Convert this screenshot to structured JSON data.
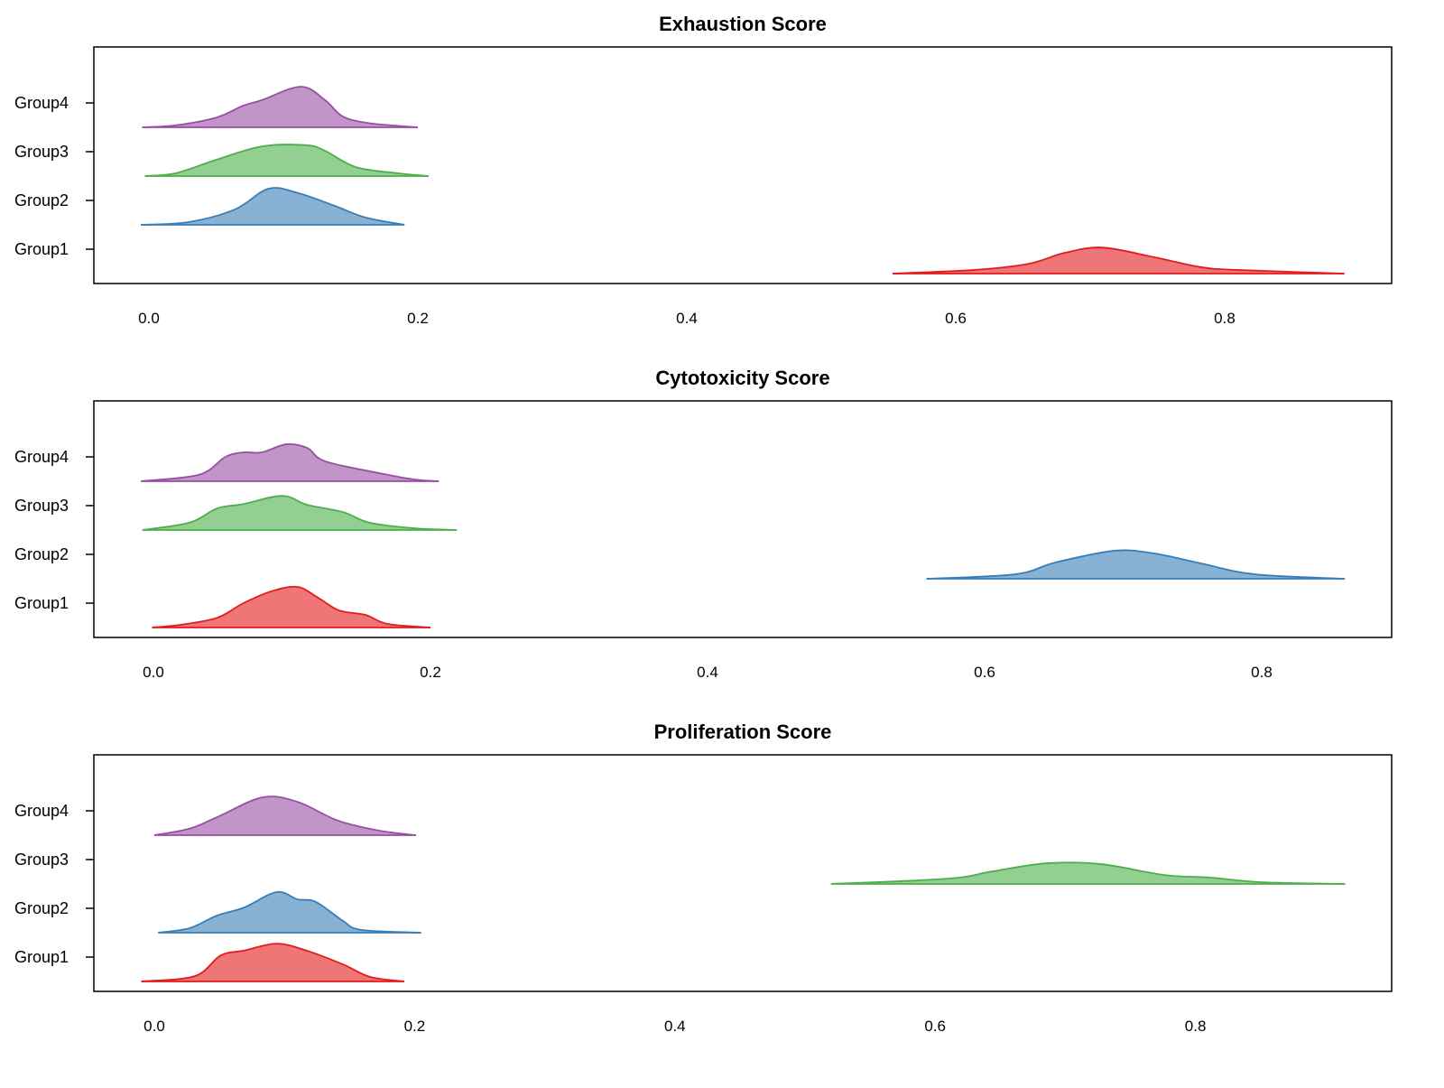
{
  "chart_data": [
    {
      "type": "ridgeline",
      "title": "Exhaustion Score",
      "x_ticks": [
        "0.0",
        "0.2",
        "0.4",
        "0.6",
        "0.8"
      ],
      "x_tick_values": [
        0,
        0.2,
        0.4,
        0.6,
        0.8
      ],
      "groups": [
        {
          "name": "Group1",
          "color": "#E41A1C",
          "points": [
            [
              0.553,
              0
            ],
            [
              0.614,
              0.09
            ],
            [
              0.654,
              0.24
            ],
            [
              0.681,
              0.51
            ],
            [
              0.709,
              0.64
            ],
            [
              0.748,
              0.4
            ],
            [
              0.782,
              0.16
            ],
            [
              0.809,
              0.09
            ],
            [
              0.889,
              0
            ]
          ]
        },
        {
          "name": "Group2",
          "color": "#377EB8",
          "points": [
            [
              -0.006,
              0
            ],
            [
              0.03,
              0.07
            ],
            [
              0.064,
              0.38
            ],
            [
              0.089,
              0.89
            ],
            [
              0.111,
              0.78
            ],
            [
              0.138,
              0.47
            ],
            [
              0.161,
              0.18
            ],
            [
              0.19,
              0
            ]
          ]
        },
        {
          "name": "Group3",
          "color": "#4DAF4A",
          "points": [
            [
              -0.003,
              0
            ],
            [
              0.02,
              0.07
            ],
            [
              0.05,
              0.4
            ],
            [
              0.084,
              0.73
            ],
            [
              0.117,
              0.76
            ],
            [
              0.131,
              0.62
            ],
            [
              0.154,
              0.22
            ],
            [
              0.185,
              0.07
            ],
            [
              0.208,
              0
            ]
          ]
        },
        {
          "name": "Group4",
          "color": "#984EA3",
          "points": [
            [
              -0.005,
              0
            ],
            [
              0.02,
              0.05
            ],
            [
              0.05,
              0.24
            ],
            [
              0.07,
              0.53
            ],
            [
              0.084,
              0.67
            ],
            [
              0.113,
              1.0
            ],
            [
              0.131,
              0.67
            ],
            [
              0.144,
              0.27
            ],
            [
              0.164,
              0.1
            ],
            [
              0.2,
              0
            ]
          ]
        }
      ]
    },
    {
      "type": "ridgeline",
      "title": "Cytotoxicity Score",
      "x_ticks": [
        "0.0",
        "0.2",
        "0.4",
        "0.6",
        "0.8"
      ],
      "x_tick_values": [
        0,
        0.2,
        0.4,
        0.6,
        0.8
      ],
      "groups": [
        {
          "name": "Group1",
          "color": "#E41A1C",
          "points": [
            [
              -0.001,
              0
            ],
            [
              0.02,
              0.07
            ],
            [
              0.046,
              0.24
            ],
            [
              0.065,
              0.6
            ],
            [
              0.085,
              0.89
            ],
            [
              0.104,
              1.0
            ],
            [
              0.119,
              0.73
            ],
            [
              0.134,
              0.42
            ],
            [
              0.153,
              0.31
            ],
            [
              0.169,
              0.09
            ],
            [
              0.2,
              0
            ]
          ]
        },
        {
          "name": "Group2",
          "color": "#377EB8",
          "points": [
            [
              0.558,
              0
            ],
            [
              0.622,
              0.11
            ],
            [
              0.651,
              0.4
            ],
            [
              0.694,
              0.69
            ],
            [
              0.723,
              0.62
            ],
            [
              0.756,
              0.38
            ],
            [
              0.795,
              0.11
            ],
            [
              0.86,
              0
            ]
          ]
        },
        {
          "name": "Group3",
          "color": "#4DAF4A",
          "points": [
            [
              -0.008,
              0
            ],
            [
              0.026,
              0.18
            ],
            [
              0.046,
              0.53
            ],
            [
              0.065,
              0.64
            ],
            [
              0.093,
              0.84
            ],
            [
              0.111,
              0.62
            ],
            [
              0.137,
              0.44
            ],
            [
              0.156,
              0.18
            ],
            [
              0.189,
              0.04
            ],
            [
              0.219,
              0
            ]
          ]
        },
        {
          "name": "Group4",
          "color": "#984EA3",
          "points": [
            [
              -0.009,
              0
            ],
            [
              0.033,
              0.16
            ],
            [
              0.052,
              0.6
            ],
            [
              0.065,
              0.71
            ],
            [
              0.078,
              0.71
            ],
            [
              0.096,
              0.91
            ],
            [
              0.111,
              0.82
            ],
            [
              0.124,
              0.49
            ],
            [
              0.163,
              0.2
            ],
            [
              0.189,
              0.04
            ],
            [
              0.206,
              0
            ]
          ]
        }
      ]
    },
    {
      "type": "ridgeline",
      "title": "Proliferation Score",
      "x_ticks": [
        "0.0",
        "0.2",
        "0.4",
        "0.6",
        "0.8"
      ],
      "x_tick_values": [
        0,
        0.2,
        0.4,
        0.6,
        0.8
      ],
      "groups": [
        {
          "name": "Group1",
          "color": "#E41A1C",
          "points": [
            [
              -0.01,
              0
            ],
            [
              0.031,
              0.13
            ],
            [
              0.051,
              0.64
            ],
            [
              0.069,
              0.76
            ],
            [
              0.094,
              0.93
            ],
            [
              0.117,
              0.76
            ],
            [
              0.145,
              0.42
            ],
            [
              0.166,
              0.11
            ],
            [
              0.192,
              0
            ]
          ]
        },
        {
          "name": "Group2",
          "color": "#377EB8",
          "points": [
            [
              0.003,
              0
            ],
            [
              0.027,
              0.11
            ],
            [
              0.048,
              0.42
            ],
            [
              0.069,
              0.62
            ],
            [
              0.094,
              1.0
            ],
            [
              0.11,
              0.82
            ],
            [
              0.124,
              0.76
            ],
            [
              0.145,
              0.29
            ],
            [
              0.159,
              0.07
            ],
            [
              0.205,
              0
            ]
          ]
        },
        {
          "name": "Group3",
          "color": "#4DAF4A",
          "points": [
            [
              0.52,
              0
            ],
            [
              0.61,
              0.13
            ],
            [
              0.644,
              0.31
            ],
            [
              0.686,
              0.51
            ],
            [
              0.727,
              0.49
            ],
            [
              0.776,
              0.22
            ],
            [
              0.81,
              0.16
            ],
            [
              0.852,
              0.04
            ],
            [
              0.915,
              0
            ]
          ]
        },
        {
          "name": "Group4",
          "color": "#984EA3",
          "points": [
            [
              0,
              0
            ],
            [
              0.027,
              0.16
            ],
            [
              0.048,
              0.44
            ],
            [
              0.083,
              0.93
            ],
            [
              0.11,
              0.82
            ],
            [
              0.141,
              0.36
            ],
            [
              0.173,
              0.11
            ],
            [
              0.201,
              0
            ]
          ]
        }
      ]
    }
  ]
}
